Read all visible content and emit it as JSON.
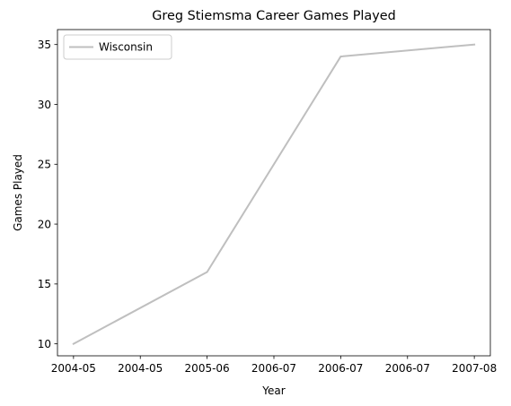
{
  "chart_data": {
    "type": "line",
    "title": "Greg Stiemsma Career Games Played",
    "xlabel": "Year",
    "ylabel": "Games Played",
    "x": [
      "2004-05",
      "2005-06",
      "2006-07",
      "2007-08"
    ],
    "x_positions": [
      0,
      1,
      2,
      3
    ],
    "xlim": [
      -0.12,
      3.12
    ],
    "xticks": [
      0,
      0.5,
      1,
      1.5,
      2,
      2.5,
      3
    ],
    "xtick_labels": [
      "2004-05",
      "2004-05",
      "2005-06",
      "2006-07",
      "2006-07",
      "2006-07",
      "2007-08"
    ],
    "ylim": [
      9.0,
      36.25
    ],
    "yticks": [
      10,
      15,
      20,
      25,
      30,
      35
    ],
    "grid": false,
    "legend_position": "upper-left",
    "series": [
      {
        "name": "Wisconsin",
        "values": [
          10,
          16,
          34,
          35
        ],
        "color": "#bfbfbf"
      }
    ]
  }
}
